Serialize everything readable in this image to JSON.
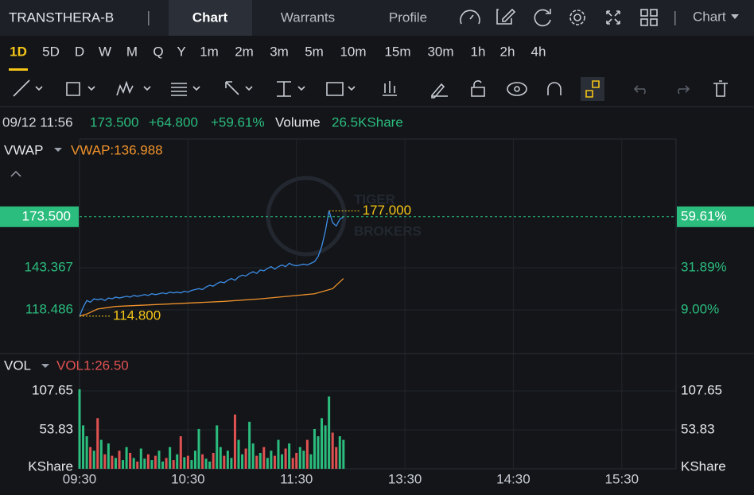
{
  "header": {
    "symbol": "TRANSTHERA-B",
    "tabs": [
      "Chart",
      "Warrants",
      "Profile"
    ],
    "menu": "Chart"
  },
  "timeframes": [
    "1D",
    "5D",
    "D",
    "W",
    "M",
    "Q",
    "Y",
    "1m",
    "2m",
    "3m",
    "5m",
    "10m",
    "15m",
    "30m",
    "1h",
    "2h",
    "4h"
  ],
  "quote": {
    "time": "09/12 11:56",
    "price": "173.500",
    "change": "+64.800",
    "change_pct": "+59.61%",
    "volume_label": "Volume",
    "volume": "26.5KShare"
  },
  "watermark": [
    "TIGER",
    "BROKERS"
  ],
  "chart_data": [
    {
      "type": "line",
      "indicator": "VWAP",
      "x": [
        0,
        2,
        4,
        6,
        8,
        10,
        12,
        14,
        16,
        18,
        20,
        22,
        24,
        26,
        28,
        30,
        32,
        34,
        36,
        38,
        40,
        42,
        44,
        46,
        48,
        50,
        52,
        54,
        56,
        58,
        60,
        62,
        64,
        66,
        68,
        70,
        72,
        74,
        76,
        78,
        80,
        82,
        84,
        86,
        88,
        90,
        92,
        94,
        96,
        98,
        100,
        102,
        104,
        106,
        108,
        110,
        112,
        114,
        116,
        118,
        120,
        122,
        124,
        126,
        128,
        130,
        132,
        134,
        136,
        138,
        140,
        142,
        144,
        146
      ],
      "xlim": [
        0,
        330
      ],
      "xticks": [
        {
          "value": 0,
          "label": "09:30"
        },
        {
          "value": 60,
          "label": "10:30"
        },
        {
          "value": 120,
          "label": "11:30"
        },
        {
          "value": 180,
          "label": "13:30"
        },
        {
          "value": 240,
          "label": "14:30"
        },
        {
          "value": 300,
          "label": "15:30"
        }
      ],
      "series": [
        {
          "color": "#3d8ee6",
          "values": [
            114.8,
            120,
            124,
            123,
            125,
            124.5,
            125,
            124,
            125.5,
            125,
            126,
            125.5,
            126,
            126.5,
            126,
            127,
            126.5,
            127,
            127.5,
            127,
            128,
            127.5,
            128,
            128.5,
            128,
            129,
            128.5,
            129,
            128.5,
            129.5,
            129,
            130,
            130.5,
            131,
            130.5,
            132,
            133,
            132.5,
            134,
            135,
            134.5,
            136,
            137,
            136,
            138,
            139,
            138.5,
            140,
            141,
            140,
            142,
            141.5,
            143,
            144,
            142.5,
            144,
            145,
            144,
            146,
            145,
            144.5,
            145,
            145.5,
            145,
            146,
            147,
            150,
            156,
            165,
            177,
            170,
            168,
            172,
            173.5
          ]
        },
        {
          "name": "VWAP",
          "label": "VWAP:136.988",
          "color": "#f0922b",
          "x": [
            0,
            4,
            10,
            20,
            40,
            60,
            80,
            100,
            120,
            130,
            140,
            146
          ],
          "values": [
            114.8,
            116,
            119,
            120.5,
            121.5,
            122.5,
            123.5,
            125,
            127,
            128,
            131,
            136.988
          ]
        }
      ],
      "ylim": [
        92.66,
        219.4
      ],
      "yticks": [
        118.486,
        143.367
      ],
      "y2lim": [
        -14.76,
        101.84
      ],
      "y2ticks": [
        {
          "value": 9,
          "label": "9.00%"
        },
        {
          "value": 31.89,
          "label": "31.89%"
        }
      ],
      "current": {
        "value": 173.5,
        "label": "173.500",
        "pct": 59.61,
        "pct_label": "59.61%"
      },
      "annotations": [
        {
          "x": 138,
          "value": 177,
          "label": "177.000"
        },
        {
          "x": 0,
          "value": 114.8,
          "label": "114.800"
        }
      ],
      "grid": true
    },
    {
      "type": "bar",
      "indicator": "VOL",
      "label": "VOL1:26.50",
      "values": [
        110,
        60,
        45,
        30,
        25,
        70,
        40,
        20,
        35,
        18,
        15,
        25,
        12,
        30,
        22,
        15,
        10,
        28,
        14,
        20,
        12,
        18,
        25,
        10,
        15,
        30,
        12,
        20,
        45,
        16,
        18,
        12,
        25,
        55,
        20,
        14,
        10,
        22,
        60,
        30,
        18,
        25,
        15,
        75,
        40,
        20,
        28,
        65,
        35,
        18,
        22,
        30,
        15,
        25,
        18,
        40,
        20,
        28,
        35,
        15,
        22,
        30,
        25,
        40,
        20,
        55,
        45,
        70,
        60,
        100,
        50,
        30,
        45,
        40
      ],
      "ylim": [
        0,
        159.3
      ],
      "yticks": [
        53.83,
        107.65
      ],
      "unit": "KShare",
      "up_color": "#2bbd7e",
      "down_color": "#e05251",
      "grid": true
    }
  ]
}
